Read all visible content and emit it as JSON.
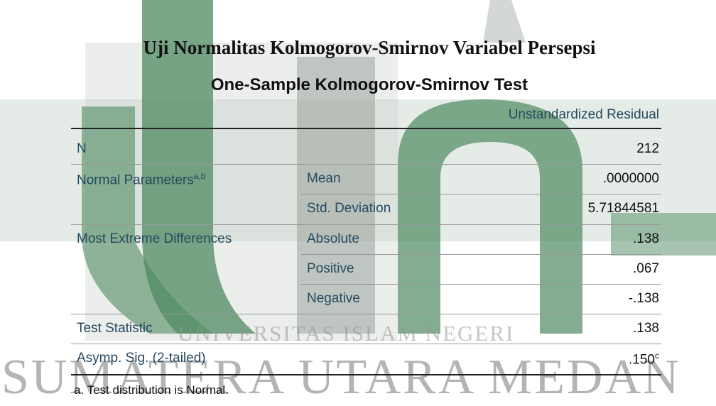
{
  "document": {
    "title": "Uji Normalitas Kolmogorov-Smirnov Variabel Persepsi",
    "table": {
      "title": "One-Sample Kolmogorov-Smirnov Test",
      "column_header": "Unstandardized Residual",
      "rows": [
        {
          "label": "N",
          "value": "212"
        },
        {
          "label": "Normal Parameters",
          "label_sup": "a,b",
          "sub": "Mean",
          "value": ".0000000"
        },
        {
          "sub": "Std. Deviation",
          "value": "5.71844581"
        },
        {
          "label": "Most Extreme Differences",
          "sub": "Absolute",
          "value": ".138"
        },
        {
          "sub": "Positive",
          "value": ".067"
        },
        {
          "sub": "Negative",
          "value": "-.138"
        },
        {
          "label": "Test Statistic",
          "value": ".138"
        },
        {
          "label": "Asymp. Sig. (2-tailed)",
          "value": ".150",
          "value_sup": "c"
        }
      ],
      "footnote": "a. Test distribution is Normal."
    },
    "watermark": {
      "line1": "UNIVERSITAS ISLAM NEGERI",
      "line2": "SUMATERA UTARA MEDAN"
    }
  }
}
